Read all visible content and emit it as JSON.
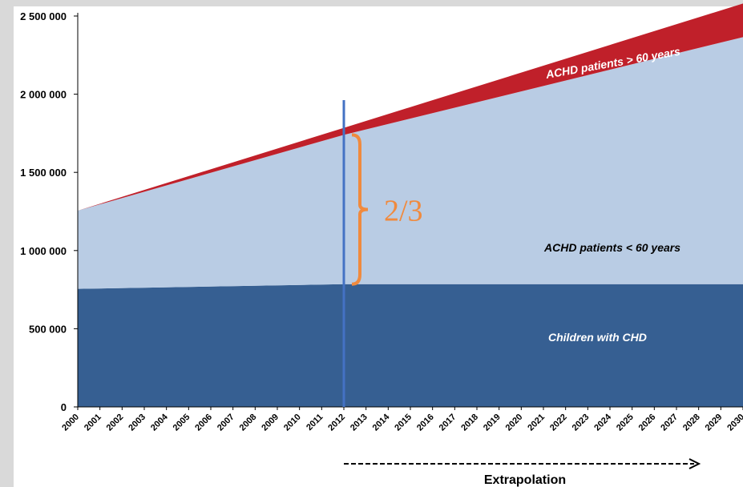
{
  "chart_data": {
    "type": "area",
    "stacked": true,
    "x": [
      2000,
      2012,
      2030
    ],
    "series": [
      {
        "name": "Children with CHD",
        "values": [
          755000,
          785000,
          785000
        ],
        "color": "#365f92"
      },
      {
        "name": "ACHD patients < 60 years",
        "values": [
          500000,
          955000,
          1580000
        ],
        "color": "#b9cce4"
      },
      {
        "name": "ACHD patients > 60 years",
        "values": [
          0,
          45000,
          215000
        ],
        "color": "#c0202a"
      }
    ],
    "xtick_labels": [
      "2000",
      "2001",
      "2002",
      "2003",
      "2004",
      "2005",
      "2006",
      "2007",
      "2008",
      "2009",
      "2010",
      "2011",
      "2012",
      "2013",
      "2014",
      "2015",
      "2016",
      "2017",
      "2018",
      "2019",
      "2020",
      "2021",
      "2022",
      "2023",
      "2024",
      "2025",
      "2026",
      "2027",
      "2028",
      "2029",
      "2030"
    ],
    "ytick_values": [
      0,
      500000,
      1000000,
      1500000,
      2000000,
      2500000
    ],
    "ytick_labels": [
      "0",
      "500 000",
      "1 000 000",
      "1 500 000",
      "2 000 000",
      "2 500 000"
    ],
    "ylim": [
      0,
      2500000
    ],
    "xlim": [
      2000,
      2030
    ],
    "grid": false,
    "marker_year": 2012,
    "marker_color": "#4472c4",
    "bracket": {
      "year": 2012,
      "from": 785000,
      "to": 1740000,
      "label": "2/3",
      "color": "#f08a3e"
    },
    "extrapolation": {
      "label": "Extrapolation",
      "from_year": 2012,
      "to_year": 2030
    },
    "annotations": {
      "over60": "ACHD patients > 60 years",
      "under60": "ACHD patients < 60 years",
      "children": "Children with CHD"
    }
  }
}
